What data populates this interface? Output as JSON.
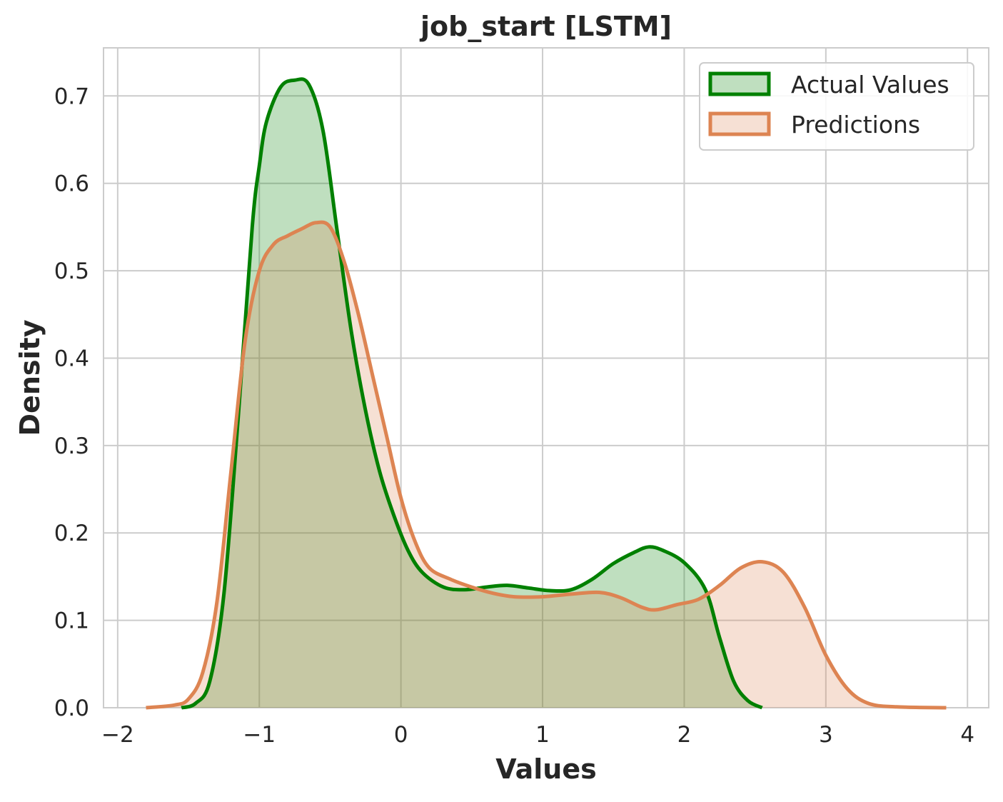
{
  "chart_data": {
    "type": "area",
    "title": "job_start [LSTM]",
    "xlabel": "Values",
    "ylabel": "Density",
    "xlim": [
      -2.1,
      4.15
    ],
    "ylim": [
      0.0,
      0.755
    ],
    "xticks": [
      {
        "value": -2,
        "label": "−2"
      },
      {
        "value": -1,
        "label": "−1"
      },
      {
        "value": 0,
        "label": "0"
      },
      {
        "value": 1,
        "label": "1"
      },
      {
        "value": 2,
        "label": "2"
      },
      {
        "value": 3,
        "label": "3"
      },
      {
        "value": 4,
        "label": "4"
      }
    ],
    "yticks": [
      {
        "value": 0.0,
        "label": "0.0"
      },
      {
        "value": 0.1,
        "label": "0.1"
      },
      {
        "value": 0.2,
        "label": "0.2"
      },
      {
        "value": 0.3,
        "label": "0.3"
      },
      {
        "value": 0.4,
        "label": "0.4"
      },
      {
        "value": 0.5,
        "label": "0.5"
      },
      {
        "value": 0.6,
        "label": "0.6"
      },
      {
        "value": 0.7,
        "label": "0.7"
      }
    ],
    "grid": true,
    "legend_position": "top-right",
    "series": [
      {
        "name": "Actual Values",
        "color": "#008000",
        "fill": "rgba(0,128,0,0.25)",
        "x": [
          -1.55,
          -1.45,
          -1.35,
          -1.25,
          -1.15,
          -1.05,
          -1.0,
          -0.95,
          -0.85,
          -0.75,
          -0.65,
          -0.55,
          -0.45,
          -0.35,
          -0.25,
          -0.15,
          -0.05,
          0.05,
          0.15,
          0.3,
          0.45,
          0.6,
          0.75,
          0.9,
          1.05,
          1.2,
          1.35,
          1.5,
          1.65,
          1.75,
          1.85,
          2.0,
          2.15,
          2.25,
          2.35,
          2.45,
          2.55
        ],
        "y": [
          0.0,
          0.005,
          0.03,
          0.13,
          0.33,
          0.55,
          0.62,
          0.67,
          0.71,
          0.718,
          0.713,
          0.66,
          0.545,
          0.43,
          0.34,
          0.27,
          0.22,
          0.18,
          0.155,
          0.138,
          0.135,
          0.138,
          0.14,
          0.137,
          0.134,
          0.135,
          0.147,
          0.165,
          0.178,
          0.184,
          0.18,
          0.166,
          0.135,
          0.08,
          0.03,
          0.008,
          0.0
        ]
      },
      {
        "name": "Predictions",
        "color": "#dd8452",
        "fill": "rgba(221,132,82,0.25)",
        "x": [
          -1.8,
          -1.6,
          -1.5,
          -1.4,
          -1.3,
          -1.2,
          -1.1,
          -1.0,
          -0.9,
          -0.8,
          -0.7,
          -0.6,
          -0.5,
          -0.4,
          -0.3,
          -0.2,
          -0.1,
          0.0,
          0.1,
          0.2,
          0.35,
          0.5,
          0.65,
          0.8,
          1.0,
          1.2,
          1.4,
          1.55,
          1.7,
          1.8,
          1.95,
          2.1,
          2.25,
          2.4,
          2.55,
          2.7,
          2.85,
          3.0,
          3.15,
          3.3,
          3.5,
          3.85
        ],
        "y": [
          0.0,
          0.003,
          0.01,
          0.04,
          0.12,
          0.27,
          0.42,
          0.5,
          0.53,
          0.54,
          0.548,
          0.555,
          0.55,
          0.51,
          0.45,
          0.38,
          0.31,
          0.24,
          0.19,
          0.16,
          0.147,
          0.138,
          0.131,
          0.127,
          0.127,
          0.13,
          0.132,
          0.126,
          0.115,
          0.112,
          0.118,
          0.124,
          0.14,
          0.16,
          0.167,
          0.155,
          0.115,
          0.06,
          0.022,
          0.005,
          0.001,
          0.0
        ]
      }
    ]
  }
}
